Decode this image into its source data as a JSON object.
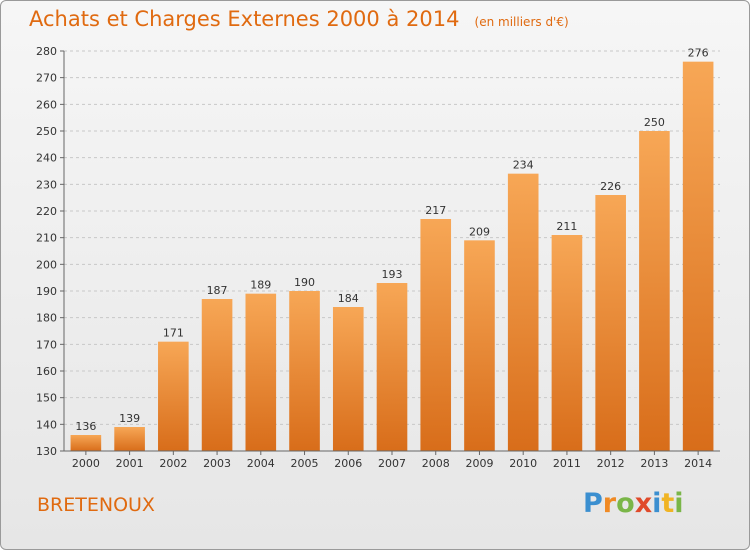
{
  "header": {
    "title": "Achats et Charges Externes 2000 à 2014",
    "unit": "(en milliers d'€)"
  },
  "footer": {
    "commune": "BRETENOUX",
    "logo_letters": [
      "P",
      "r",
      "o",
      "x",
      "i",
      "t",
      "i"
    ]
  },
  "colors": {
    "title": "#e06a10",
    "bar_top": "#f7a756",
    "bar_bottom": "#d86d1a",
    "grid": "#c8c8c8"
  },
  "chart_data": {
    "type": "bar",
    "title": "Achats et Charges Externes 2000 à 2014",
    "xlabel": "",
    "ylabel": "",
    "categories": [
      "2000",
      "2001",
      "2002",
      "2003",
      "2004",
      "2005",
      "2006",
      "2007",
      "2008",
      "2009",
      "2010",
      "2011",
      "2012",
      "2013",
      "2014"
    ],
    "values": [
      136,
      139,
      171,
      187,
      189,
      190,
      184,
      193,
      217,
      209,
      234,
      211,
      226,
      250,
      276
    ],
    "ylim": [
      130,
      280
    ],
    "yticks": [
      130,
      140,
      150,
      160,
      170,
      180,
      190,
      200,
      210,
      220,
      230,
      240,
      250,
      260,
      270,
      280
    ],
    "grid": true,
    "data_labels": true
  }
}
